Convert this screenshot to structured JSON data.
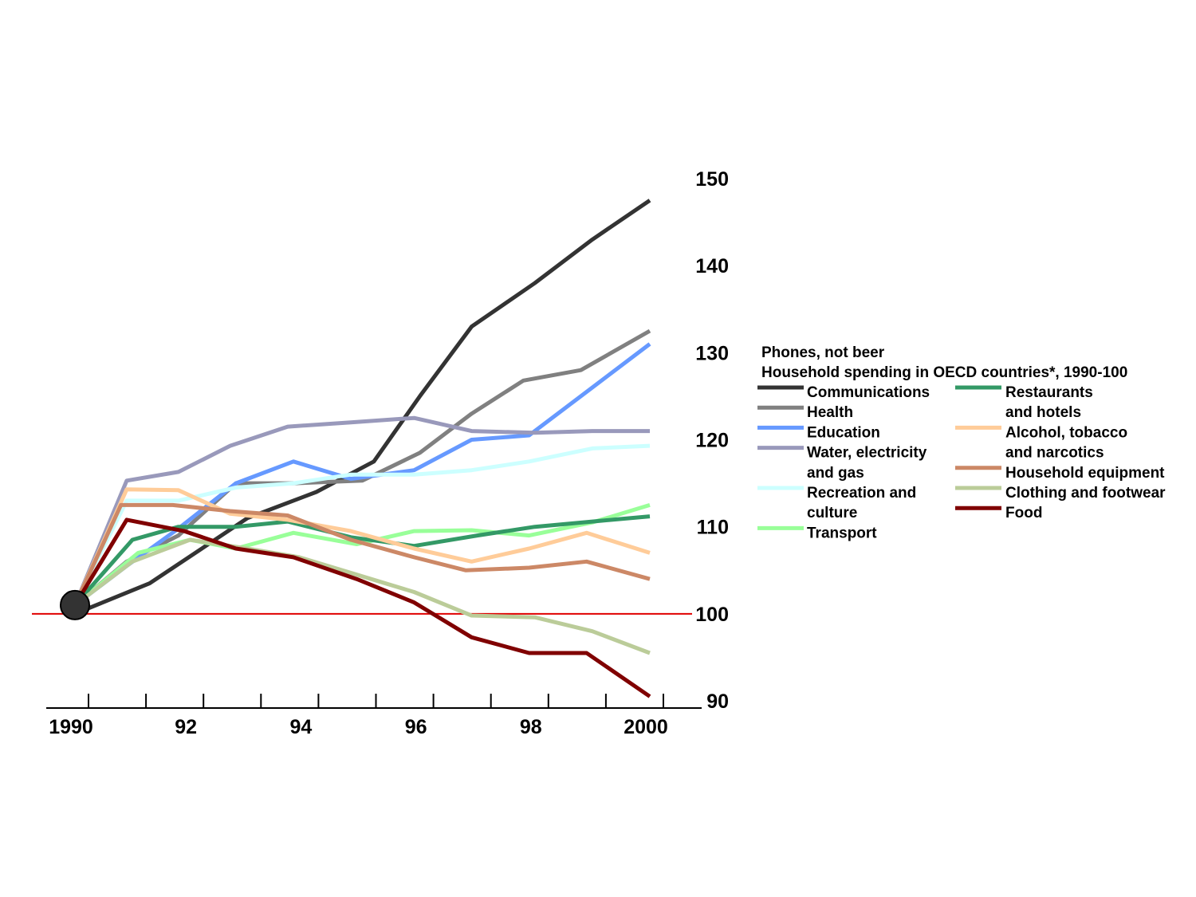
{
  "chart_data": {
    "type": "line",
    "title": "Phones, not beer",
    "subtitle": "Household spending in OECD countries*, 1990-100",
    "xlabel": "",
    "ylabel": "",
    "xlim": [
      1990,
      2000
    ],
    "ylim": [
      90,
      150
    ],
    "x_ticks": [
      1990,
      1991,
      1992,
      1993,
      1994,
      1995,
      1996,
      1997,
      1998,
      1999,
      2000
    ],
    "x_tick_labels": [
      {
        "x": 1990,
        "label": "1990"
      },
      {
        "x": 1992,
        "label": "92"
      },
      {
        "x": 1994,
        "label": "94"
      },
      {
        "x": 1996,
        "label": "96"
      },
      {
        "x": 1998,
        "label": "98"
      },
      {
        "x": 2000,
        "label": "2000"
      }
    ],
    "y_ticks": [
      90,
      100,
      110,
      120,
      130,
      140,
      150
    ],
    "y_tick_labels": [
      "90",
      "100",
      "110",
      "120",
      "130",
      "140",
      "150"
    ],
    "y_axis_position": "right",
    "reference_line": {
      "y": 100,
      "color": "#e00000"
    },
    "origin_marker": {
      "x": 1990,
      "y": 101,
      "color": "#333333"
    },
    "grid": false,
    "legend_position": "right",
    "series": [
      {
        "name": "Communications",
        "color": "#333333",
        "x": [
          1990,
          1991.3,
          1993,
          1994.2,
          1995.2,
          1996,
          1996.9,
          1998,
          1999,
          2000
        ],
        "y": [
          100,
          103.5,
          111,
          114,
          117.5,
          125,
          133,
          138,
          143,
          147.5
        ]
      },
      {
        "name": "Health",
        "color": "#808080",
        "x": [
          1990,
          1990.9,
          1991.8,
          1992.8,
          1993.8,
          1995,
          1996,
          1996.9,
          1997.8,
          1998.8,
          2000
        ],
        "y": [
          101,
          106,
          109,
          115,
          115,
          115.3,
          118.5,
          123,
          126.8,
          128,
          132.5
        ]
      },
      {
        "name": "Education",
        "color": "#6699ff",
        "x": [
          1990,
          1990.9,
          1991.8,
          1992.8,
          1993.8,
          1994.8,
          1995.9,
          1996.9,
          1997.9,
          1999,
          2000
        ],
        "y": [
          101,
          105.5,
          109.8,
          115,
          117.5,
          115.5,
          116.5,
          120,
          120.5,
          126,
          131
        ]
      },
      {
        "name": "Water, electricity and gas",
        "color": "#9999bb",
        "x": [
          1990,
          1990.9,
          1991.8,
          1992.7,
          1993.7,
          1994.8,
          1995.9,
          1996.9,
          1998,
          1999,
          2000
        ],
        "y": [
          101,
          115.3,
          116.3,
          119.3,
          121.5,
          122,
          122.5,
          121,
          120.8,
          121,
          121
        ]
      },
      {
        "name": "Recreation and culture",
        "color": "#ccffff",
        "x": [
          1990,
          1990.9,
          1991.8,
          1992.8,
          1993.8,
          1994.8,
          1995.9,
          1996.9,
          1997.9,
          1999,
          2000
        ],
        "y": [
          101,
          113,
          113,
          114.5,
          115,
          116,
          116,
          116.5,
          117.5,
          119,
          119.3
        ]
      },
      {
        "name": "Transport",
        "color": "#99ff99",
        "x": [
          1990,
          1991.1,
          1992,
          1992.8,
          1993.8,
          1994.9,
          1995.9,
          1996.9,
          1997.9,
          1999,
          2000
        ],
        "y": [
          101,
          107,
          108.5,
          107.5,
          109.3,
          108,
          109.5,
          109.6,
          109,
          110.5,
          112.5
        ]
      },
      {
        "name": "Restaurants and hotels",
        "color": "#339966",
        "x": [
          1990,
          1991,
          1991.8,
          1992.8,
          1993.7,
          1994.8,
          1995.9,
          1997,
          1998,
          1999,
          2000
        ],
        "y": [
          101,
          108.5,
          110,
          110,
          110.6,
          108.8,
          107.8,
          109,
          110,
          110.6,
          111.2
        ]
      },
      {
        "name": "Alcohol, tobacco and narcotics",
        "color": "#ffcc99",
        "x": [
          1990,
          1990.9,
          1991.8,
          1992.7,
          1993.7,
          1994.8,
          1995.9,
          1996.9,
          1997.9,
          1998.9,
          2000
        ],
        "y": [
          101,
          114.3,
          114.2,
          111.5,
          110.8,
          109.5,
          107.5,
          106,
          107.5,
          109.3,
          107
        ]
      },
      {
        "name": "Household equipment",
        "color": "#cc8866",
        "x": [
          1990,
          1990.8,
          1991.7,
          1992.7,
          1993.7,
          1994.8,
          1995.9,
          1996.8,
          1997.9,
          1998.9,
          2000
        ],
        "y": [
          101,
          112.5,
          112.5,
          111.8,
          111.3,
          108.5,
          106.5,
          105,
          105.3,
          106,
          104
        ]
      },
      {
        "name": "Clothing and footwear",
        "color": "#bbcc99",
        "x": [
          1990,
          1991,
          1992,
          1993,
          1993.9,
          1994.9,
          1995.9,
          1996.9,
          1998,
          1999,
          2000
        ],
        "y": [
          101,
          106,
          108.5,
          107.5,
          106.5,
          104.5,
          102.5,
          99.8,
          99.6,
          98,
          95.5
        ]
      },
      {
        "name": "Food",
        "color": "#800000",
        "x": [
          1990,
          1990.9,
          1991.9,
          1992.8,
          1993.8,
          1994.9,
          1995.9,
          1996.9,
          1997.9,
          1998.9,
          2000
        ],
        "y": [
          101,
          110.8,
          109.5,
          107.5,
          106.5,
          104,
          101.3,
          97.3,
          95.5,
          95.5,
          90.5
        ]
      }
    ],
    "legend": {
      "columns": [
        [
          {
            "series": 0,
            "lines": [
              "Communications"
            ]
          },
          {
            "series": 1,
            "lines": [
              "Health"
            ]
          },
          {
            "series": 2,
            "lines": [
              "Education"
            ]
          },
          {
            "series": 3,
            "lines": [
              "Water, electricity",
              "and gas"
            ]
          },
          {
            "series": 4,
            "lines": [
              "Recreation and",
              "culture"
            ]
          },
          {
            "series": 5,
            "lines": [
              "Transport"
            ]
          }
        ],
        [
          {
            "series": 6,
            "lines": [
              "Restaurants",
              " and hotels"
            ]
          },
          {
            "series": 7,
            "lines": [
              "Alcohol, tobacco",
              " and narcotics"
            ]
          },
          {
            "series": 8,
            "lines": [
              "Household equipment"
            ]
          },
          {
            "series": 9,
            "lines": [
              "Clothing and footwear"
            ]
          },
          {
            "series": 10,
            "lines": [
              "Food"
            ]
          }
        ]
      ]
    }
  }
}
